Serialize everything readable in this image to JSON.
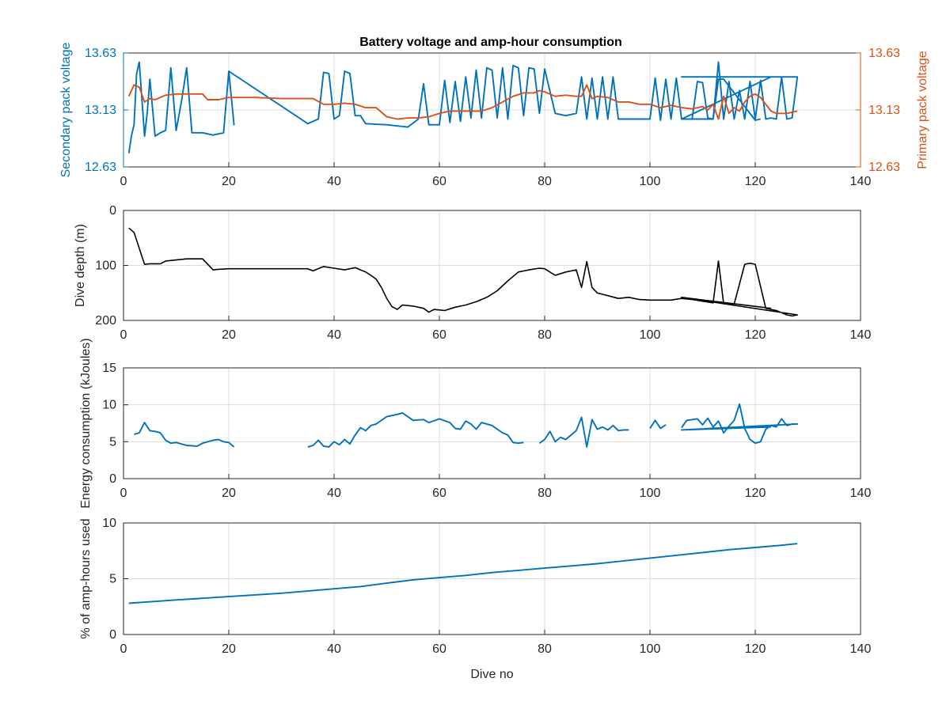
{
  "figure": {
    "title": "Battery voltage and amp-hour consumption"
  },
  "colors": {
    "secondary": "#0072BD",
    "primary": "#D95319",
    "depth": "#000000",
    "grid": "#dcdcdc",
    "axis": "#262626"
  },
  "chart_data": [
    {
      "type": "line",
      "title": "Battery voltage and amp-hour consumption",
      "xlabel": "",
      "ylabel": "Secondary pack voltage",
      "y2label": "Primary pack voltage",
      "xlim": [
        0,
        140
      ],
      "ylim": [
        12.63,
        13.63
      ],
      "y2lim": [
        12.63,
        13.63
      ],
      "xticks": [
        "0",
        "20",
        "40",
        "60",
        "80",
        "100",
        "120",
        "140"
      ],
      "yticks": [
        "12.63",
        "13.13",
        "13.63"
      ],
      "y2ticks": [
        "12.63",
        "13.13",
        "13.63"
      ],
      "grid": true,
      "series": [
        {
          "axis": "left",
          "color": "#0072BD",
          "x": [
            1,
            1.5,
            2,
            2.5,
            3,
            4,
            4.5,
            5,
            6,
            7,
            8,
            9,
            10,
            11,
            12,
            13,
            15,
            17,
            19,
            20,
            21,
            20,
            35,
            37,
            38,
            39,
            40,
            41,
            42,
            43,
            44,
            45,
            46,
            50,
            54,
            56,
            57,
            58,
            60,
            61,
            62,
            63,
            64,
            65,
            66,
            67,
            68,
            69,
            70,
            71,
            72,
            73,
            74,
            75,
            76,
            77,
            78,
            79,
            80,
            82,
            84,
            86,
            87,
            88,
            89,
            90,
            91,
            92,
            93,
            94,
            98,
            100,
            101,
            102,
            103,
            104,
            105,
            106,
            108,
            109,
            110,
            111,
            112,
            113,
            114,
            115,
            116,
            117,
            118,
            119,
            120,
            121,
            122,
            123,
            124,
            125,
            126,
            127,
            128,
            106,
            123,
            106,
            112,
            113,
            114,
            120,
            121
          ],
          "y": [
            12.75,
            12.9,
            13.0,
            13.45,
            13.55,
            12.9,
            13.1,
            13.4,
            12.9,
            12.93,
            12.95,
            13.5,
            12.95,
            13.2,
            13.5,
            12.93,
            12.93,
            12.91,
            12.93,
            13.47,
            13.0,
            13.47,
            13.01,
            13.05,
            13.46,
            13.45,
            13.05,
            13.08,
            13.47,
            13.45,
            13.08,
            13.08,
            13.01,
            13.0,
            12.98,
            13.05,
            13.36,
            13.0,
            13.0,
            13.39,
            13.02,
            13.38,
            13.03,
            13.42,
            13.06,
            13.48,
            13.06,
            13.5,
            13.48,
            13.06,
            13.5,
            13.05,
            13.52,
            13.5,
            13.08,
            13.5,
            13.49,
            13.1,
            13.49,
            13.1,
            13.08,
            13.1,
            13.42,
            13.05,
            13.41,
            13.05,
            13.42,
            13.05,
            13.42,
            13.05,
            13.05,
            13.05,
            13.41,
            13.04,
            13.4,
            13.05,
            13.41,
            13.05,
            13.05,
            13.38,
            13.37,
            13.06,
            13.05,
            13.55,
            13.05,
            13.38,
            13.05,
            13.3,
            13.05,
            13.38,
            13.05,
            13.39,
            13.05,
            13.06,
            13.05,
            13.42,
            13.05,
            13.06,
            13.42,
            13.42,
            13.42,
            13.05,
            13.05,
            13.4,
            13.4,
            13.04,
            13.05
          ]
        },
        {
          "axis": "right",
          "color": "#D95319",
          "x": [
            1,
            2,
            3,
            4,
            5,
            6,
            8,
            10,
            13,
            15,
            16,
            18,
            20,
            25,
            30,
            34,
            36,
            38,
            40,
            42,
            44,
            46,
            48,
            50,
            52,
            54,
            56,
            58,
            60,
            62,
            64,
            66,
            68,
            70,
            72,
            74,
            76,
            78,
            79,
            80,
            82,
            84,
            86,
            87,
            88,
            89,
            90,
            92,
            94,
            96,
            98,
            100,
            102,
            104,
            106,
            108,
            110,
            111,
            112,
            113,
            114,
            115,
            116,
            117,
            118,
            119,
            120,
            121,
            122,
            123,
            124,
            126,
            128
          ],
          "y": [
            13.25,
            13.35,
            13.33,
            13.2,
            13.23,
            13.22,
            13.26,
            13.27,
            13.27,
            13.27,
            13.22,
            13.22,
            13.24,
            13.24,
            13.23,
            13.23,
            13.23,
            13.18,
            13.18,
            13.19,
            13.18,
            13.15,
            13.15,
            13.07,
            13.05,
            13.06,
            13.06,
            13.07,
            13.1,
            13.12,
            13.12,
            13.12,
            13.12,
            13.15,
            13.2,
            13.25,
            13.28,
            13.28,
            13.3,
            13.29,
            13.25,
            13.26,
            13.25,
            13.25,
            13.35,
            13.23,
            13.25,
            13.24,
            13.2,
            13.2,
            13.18,
            13.18,
            13.15,
            13.17,
            13.15,
            13.14,
            13.16,
            13.13,
            13.18,
            13.05,
            13.25,
            13.1,
            13.15,
            13.12,
            13.2,
            13.25,
            13.27,
            13.24,
            13.18,
            13.12,
            13.1,
            13.1,
            13.12
          ]
        }
      ]
    },
    {
      "type": "line",
      "xlabel": "",
      "ylabel": "Dive depth (m)",
      "xlim": [
        0,
        140
      ],
      "ylim": [
        0,
        200
      ],
      "reversed_y": true,
      "xticks": [
        "0",
        "20",
        "40",
        "60",
        "80",
        "100",
        "120",
        "140"
      ],
      "yticks": [
        "0",
        "100",
        "200"
      ],
      "grid": true,
      "series": [
        {
          "color": "#000000",
          "x": [
            1,
            2,
            4,
            5,
            7,
            8,
            10,
            12,
            13,
            15,
            16,
            17,
            18,
            20,
            25,
            30,
            35,
            36,
            38,
            40,
            42,
            44,
            45,
            46,
            47,
            48,
            49,
            50,
            51,
            52,
            53,
            55,
            57,
            58,
            59,
            61,
            63,
            65,
            67,
            69,
            71,
            73,
            75,
            77,
            79,
            80,
            82,
            84,
            86,
            87,
            88,
            89,
            90,
            92,
            94,
            96,
            98,
            100,
            102,
            104,
            106,
            108,
            110,
            112,
            113,
            114,
            116,
            118,
            119,
            120,
            122,
            123,
            124,
            126,
            127,
            128,
            106,
            123
          ],
          "y": [
            32,
            40,
            98,
            97,
            97,
            92,
            90,
            88,
            88,
            88,
            98,
            108,
            107,
            106,
            106,
            106,
            106,
            110,
            102,
            105,
            108,
            104,
            108,
            112,
            118,
            125,
            140,
            160,
            175,
            180,
            172,
            174,
            178,
            185,
            180,
            182,
            176,
            172,
            166,
            158,
            146,
            128,
            112,
            108,
            105,
            106,
            118,
            112,
            108,
            140,
            93,
            140,
            150,
            155,
            160,
            158,
            162,
            163,
            163,
            163,
            160,
            162,
            165,
            168,
            92,
            170,
            170,
            98,
            96,
            98,
            178,
            180,
            182,
            190,
            192,
            190,
            158,
            178
          ]
        }
      ]
    },
    {
      "type": "line",
      "xlabel": "",
      "ylabel": "Energy consumption (kJoules)",
      "xlim": [
        0,
        140
      ],
      "ylim": [
        0,
        15
      ],
      "xticks": [
        "0",
        "20",
        "40",
        "60",
        "80",
        "100",
        "120",
        "140"
      ],
      "yticks": [
        "0",
        "5",
        "10",
        "15"
      ],
      "grid": true,
      "series": [
        {
          "color": "#0072BD",
          "segments": [
            {
              "x": [
                2,
                3,
                4,
                5,
                6,
                7,
                8,
                9,
                10,
                12,
                14,
                15,
                17,
                18,
                19,
                20,
                21
              ],
              "y": [
                6.0,
                6.2,
                7.6,
                6.5,
                6.4,
                6.2,
                5.2,
                4.8,
                4.9,
                4.5,
                4.4,
                4.8,
                5.2,
                5.3,
                5.0,
                4.9,
                4.3
              ]
            },
            {
              "x": [
                35,
                36,
                37,
                38,
                39,
                40,
                41,
                42,
                43,
                44,
                45,
                46,
                47,
                48,
                50,
                52,
                53,
                55,
                57,
                58,
                60,
                62,
                63,
                64,
                65,
                66,
                67,
                68,
                70,
                72,
                73,
                74,
                75,
                76
              ],
              "y": [
                4.3,
                4.5,
                5.2,
                4.4,
                4.3,
                5.0,
                4.6,
                5.3,
                4.7,
                5.9,
                6.9,
                6.5,
                7.2,
                7.4,
                8.4,
                8.7,
                8.9,
                7.9,
                8.0,
                7.6,
                8.1,
                7.6,
                6.8,
                6.7,
                7.8,
                7.4,
                6.7,
                7.6,
                7.2,
                6.2,
                5.9,
                4.9,
                4.8,
                4.9
              ]
            },
            {
              "x": [
                79,
                80,
                81,
                82,
                83,
                84,
                85,
                86,
                87,
                88,
                89,
                90,
                91,
                92,
                93,
                94,
                95,
                96
              ],
              "y": [
                4.8,
                5.3,
                6.4,
                5.0,
                5.6,
                5.3,
                5.9,
                6.5,
                8.3,
                4.3,
                8.0,
                6.7,
                7.0,
                6.6,
                7.2,
                6.5,
                6.6,
                6.6
              ]
            },
            {
              "x": [
                100,
                101,
                102,
                103
              ],
              "y": [
                6.8,
                7.9,
                6.8,
                7.3
              ]
            },
            {
              "x": [
                106,
                107,
                109,
                110,
                111,
                112,
                113,
                114,
                115,
                116,
                117,
                118,
                119,
                120,
                121,
                122,
                123,
                124,
                125,
                126,
                127,
                128,
                106,
                123
              ],
              "y": [
                6.9,
                7.9,
                8.1,
                7.3,
                8.2,
                7.0,
                7.8,
                6.2,
                7.1,
                7.9,
                10.1,
                6.8,
                5.3,
                4.8,
                5.0,
                6.7,
                7.2,
                7.0,
                8.1,
                7.2,
                7.4,
                7.4,
                6.6,
                7.0
              ]
            }
          ]
        }
      ]
    },
    {
      "type": "line",
      "xlabel": "Dive no",
      "ylabel": "% of amp-hours used",
      "xlim": [
        0,
        140
      ],
      "ylim": [
        0,
        10
      ],
      "xticks": [
        "0",
        "20",
        "40",
        "60",
        "80",
        "100",
        "120",
        "140"
      ],
      "yticks": [
        "0",
        "5",
        "10"
      ],
      "grid": true,
      "series": [
        {
          "color": "#0072BD",
          "x": [
            1,
            10,
            20,
            30,
            40,
            45,
            50,
            55,
            60,
            65,
            70,
            75,
            80,
            85,
            90,
            95,
            100,
            105,
            110,
            115,
            120,
            125,
            128
          ],
          "y": [
            2.8,
            3.1,
            3.4,
            3.7,
            4.1,
            4.3,
            4.6,
            4.9,
            5.1,
            5.3,
            5.55,
            5.75,
            5.95,
            6.15,
            6.35,
            6.6,
            6.85,
            7.1,
            7.35,
            7.6,
            7.8,
            8.0,
            8.15
          ]
        }
      ]
    }
  ]
}
